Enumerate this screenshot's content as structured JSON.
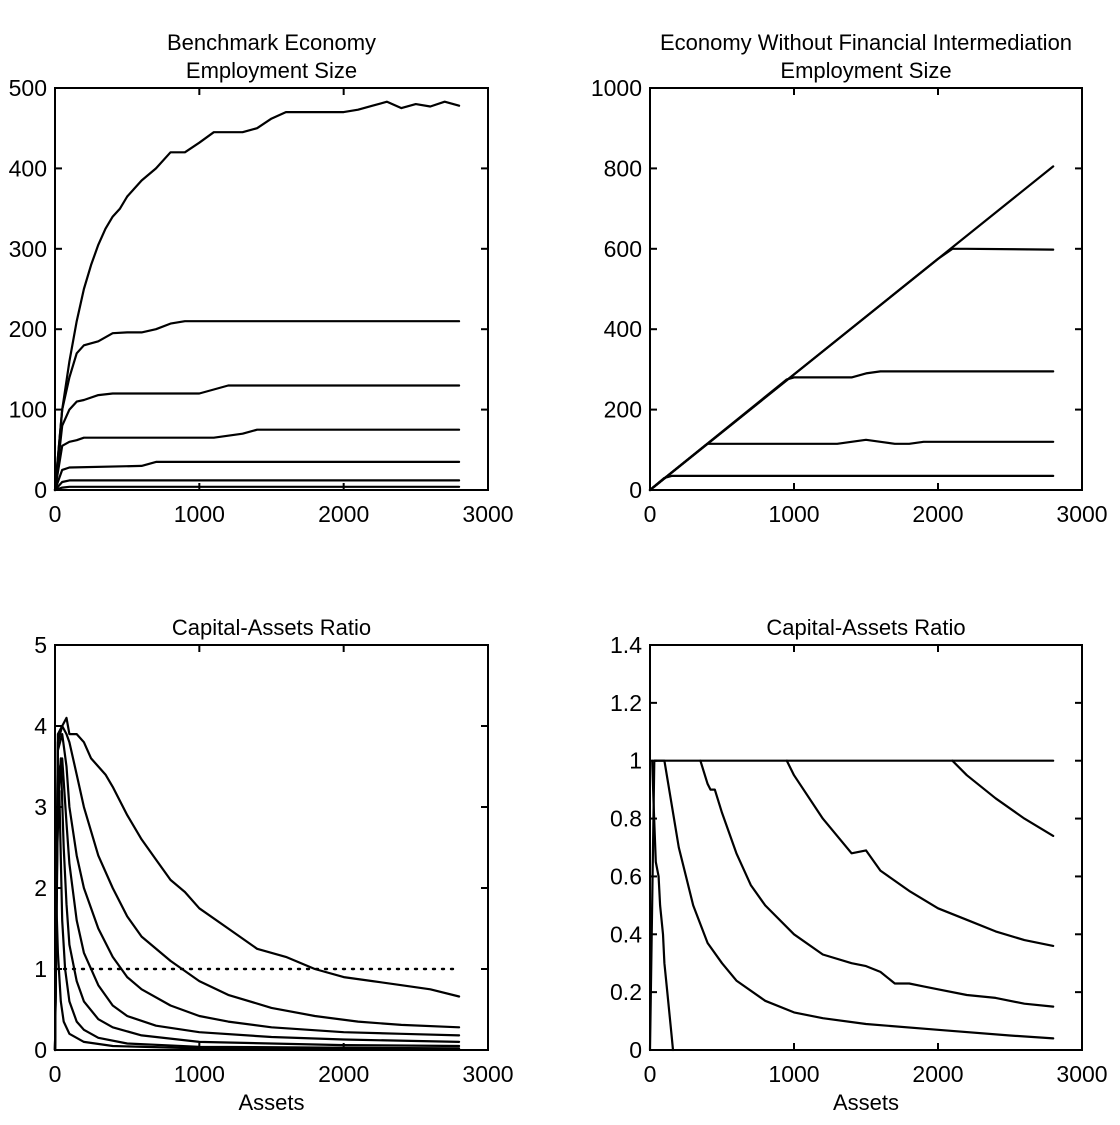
{
  "chart_data": [
    {
      "type": "line",
      "title": [
        "Benchmark Economy",
        "Employment Size"
      ],
      "xlabel": "",
      "xlim": [
        0,
        3000
      ],
      "ylim": [
        0,
        500
      ],
      "xticks": [
        0,
        1000,
        2000,
        3000
      ],
      "yticks": [
        0,
        100,
        200,
        300,
        400,
        500
      ],
      "grid": false,
      "series": [
        {
          "x": [
            0,
            50,
            100,
            150,
            200,
            250,
            300,
            350,
            400,
            450,
            500,
            550,
            600,
            700,
            800,
            900,
            1000,
            1100,
            1200,
            1300,
            1400,
            1500,
            1600,
            1800,
            2000,
            2100,
            2200,
            2300,
            2400,
            2500,
            2600,
            2700,
            2800
          ],
          "y": [
            0,
            100,
            160,
            210,
            250,
            280,
            305,
            325,
            340,
            350,
            365,
            375,
            385,
            400,
            420,
            420,
            432,
            445,
            445,
            445,
            450,
            462,
            470,
            470,
            470,
            473,
            478,
            483,
            475,
            480,
            477,
            483,
            478
          ]
        },
        {
          "x": [
            0,
            50,
            100,
            150,
            200,
            300,
            400,
            500,
            600,
            700,
            800,
            900,
            1000,
            2800
          ],
          "y": [
            0,
            100,
            140,
            170,
            180,
            185,
            195,
            196,
            196,
            200,
            207,
            210,
            210,
            210
          ]
        },
        {
          "x": [
            0,
            50,
            100,
            150,
            200,
            300,
            400,
            1000,
            1100,
            1200,
            2800
          ],
          "y": [
            0,
            80,
            100,
            110,
            112,
            118,
            120,
            120,
            125,
            130,
            130
          ]
        },
        {
          "x": [
            0,
            50,
            100,
            150,
            200,
            1100,
            1300,
            1400,
            2800
          ],
          "y": [
            0,
            55,
            60,
            62,
            65,
            65,
            70,
            75,
            75
          ]
        },
        {
          "x": [
            0,
            50,
            100,
            600,
            700,
            2800
          ],
          "y": [
            0,
            25,
            28,
            30,
            35,
            35
          ]
        },
        {
          "x": [
            0,
            50,
            100,
            2800
          ],
          "y": [
            0,
            10,
            12,
            12
          ]
        },
        {
          "x": [
            0,
            50,
            100,
            2800
          ],
          "y": [
            0,
            3,
            4,
            4
          ]
        }
      ]
    },
    {
      "type": "line",
      "title": [
        "Economy Without Financial Intermediation",
        "Employment Size"
      ],
      "xlabel": "",
      "xlim": [
        0,
        3000
      ],
      "ylim": [
        0,
        1000
      ],
      "xticks": [
        0,
        1000,
        2000,
        3000
      ],
      "yticks": [
        0,
        200,
        400,
        600,
        800,
        1000
      ],
      "grid": false,
      "series": [
        {
          "x": [
            0,
            2800
          ],
          "y": [
            0,
            805
          ]
        },
        {
          "x": [
            0,
            2000,
            2100,
            2200,
            2800
          ],
          "y": [
            0,
            575,
            600,
            600,
            598
          ]
        },
        {
          "x": [
            0,
            950,
            1000,
            1300,
            1400,
            1500,
            1600,
            2800
          ],
          "y": [
            0,
            275,
            280,
            280,
            280,
            290,
            295,
            295
          ]
        },
        {
          "x": [
            0,
            380,
            400,
            600,
            800,
            1000,
            1200,
            1300,
            1400,
            1500,
            1600,
            1700,
            1800,
            1900,
            2000,
            2800
          ],
          "y": [
            0,
            110,
            115,
            115,
            115,
            115,
            115,
            115,
            120,
            125,
            120,
            115,
            115,
            120,
            120,
            120
          ]
        },
        {
          "x": [
            0,
            100,
            150,
            2800
          ],
          "y": [
            0,
            30,
            35,
            35
          ]
        }
      ]
    },
    {
      "type": "line",
      "title": [
        "Capital-Assets Ratio"
      ],
      "xlabel": "Assets",
      "xlim": [
        0,
        3000
      ],
      "ylim": [
        0,
        5
      ],
      "xticks": [
        0,
        1000,
        2000,
        3000
      ],
      "yticks": [
        0,
        1,
        2,
        3,
        4,
        5
      ],
      "grid": false,
      "reference_line": {
        "y": 1,
        "x": [
          0,
          2800
        ],
        "style": "dotted"
      },
      "series": [
        {
          "x": [
            0,
            20,
            50,
            80,
            100,
            150,
            200,
            250,
            300,
            350,
            400,
            500,
            600,
            700,
            800,
            900,
            1000,
            1200,
            1400,
            1600,
            1800,
            2000,
            2200,
            2400,
            2600,
            2800
          ],
          "y": [
            0,
            3.9,
            4.0,
            4.1,
            3.9,
            3.9,
            3.8,
            3.6,
            3.5,
            3.4,
            3.25,
            2.9,
            2.6,
            2.35,
            2.1,
            1.95,
            1.75,
            1.5,
            1.25,
            1.15,
            1.0,
            0.9,
            0.85,
            0.8,
            0.75,
            0.66
          ]
        },
        {
          "x": [
            0,
            20,
            50,
            80,
            100,
            150,
            200,
            250,
            300,
            400,
            500,
            600,
            800,
            1000,
            1200,
            1500,
            1800,
            2100,
            2400,
            2800
          ],
          "y": [
            0,
            3.8,
            4.0,
            3.9,
            3.8,
            3.4,
            3.0,
            2.7,
            2.4,
            2.0,
            1.65,
            1.4,
            1.1,
            0.85,
            0.68,
            0.52,
            0.42,
            0.35,
            0.31,
            0.28
          ]
        },
        {
          "x": [
            0,
            20,
            50,
            80,
            100,
            150,
            200,
            300,
            400,
            500,
            600,
            800,
            1000,
            1200,
            1500,
            2000,
            2400,
            2800
          ],
          "y": [
            0,
            3.7,
            3.9,
            3.5,
            3.0,
            2.4,
            2.0,
            1.5,
            1.15,
            0.9,
            0.75,
            0.55,
            0.42,
            0.35,
            0.28,
            0.22,
            0.2,
            0.18
          ]
        },
        {
          "x": [
            0,
            20,
            50,
            80,
            100,
            150,
            200,
            300,
            400,
            500,
            700,
            1000,
            1500,
            2000,
            2800
          ],
          "y": [
            0,
            3.4,
            3.6,
            2.8,
            2.3,
            1.6,
            1.2,
            0.8,
            0.55,
            0.42,
            0.3,
            0.22,
            0.16,
            0.13,
            0.1
          ]
        },
        {
          "x": [
            0,
            20,
            40,
            60,
            80,
            100,
            150,
            200,
            300,
            400,
            600,
            1000,
            2000,
            2800
          ],
          "y": [
            0,
            3.0,
            3.6,
            2.5,
            1.8,
            1.3,
            0.85,
            0.6,
            0.38,
            0.28,
            0.18,
            0.1,
            0.06,
            0.05
          ]
        },
        {
          "x": [
            0,
            15,
            30,
            50,
            70,
            100,
            150,
            200,
            300,
            500,
            1000,
            2800
          ],
          "y": [
            0,
            2.5,
            3.2,
            1.6,
            1.0,
            0.6,
            0.35,
            0.25,
            0.15,
            0.08,
            0.04,
            0.02
          ]
        },
        {
          "x": [
            0,
            10,
            20,
            40,
            60,
            100,
            200,
            400,
            1000,
            2800
          ],
          "y": [
            0,
            1.8,
            1.2,
            0.6,
            0.35,
            0.2,
            0.1,
            0.05,
            0.02,
            0.01
          ]
        }
      ]
    },
    {
      "type": "line",
      "title": [
        "Capital-Assets Ratio"
      ],
      "xlabel": "Assets",
      "xlim": [
        0,
        3000
      ],
      "ylim": [
        0,
        1.4
      ],
      "xticks": [
        0,
        1000,
        2000,
        3000
      ],
      "yticks": [
        0,
        0.2,
        0.4,
        0.6,
        0.8,
        1,
        1.2,
        1.4
      ],
      "grid": false,
      "series": [
        {
          "x": [
            0,
            30,
            2800
          ],
          "y": [
            0,
            1.0,
            1.0
          ]
        },
        {
          "x": [
            2100,
            2200,
            2400,
            2600,
            2800
          ],
          "y": [
            1.0,
            0.95,
            0.87,
            0.8,
            0.74
          ]
        },
        {
          "x": [
            950,
            1000,
            1200,
            1400,
            1500,
            1600,
            1800,
            2000,
            2200,
            2400,
            2600,
            2800
          ],
          "y": [
            1.0,
            0.95,
            0.8,
            0.68,
            0.69,
            0.62,
            0.55,
            0.49,
            0.45,
            0.41,
            0.38,
            0.36
          ]
        },
        {
          "x": [
            350,
            400,
            420,
            450,
            500,
            600,
            700,
            800,
            1000,
            1200,
            1400,
            1500,
            1600,
            1700,
            1800,
            1900,
            2000,
            2200,
            2400,
            2600,
            2800
          ],
          "y": [
            1.0,
            0.92,
            0.9,
            0.9,
            0.82,
            0.68,
            0.57,
            0.5,
            0.4,
            0.33,
            0.3,
            0.29,
            0.27,
            0.23,
            0.23,
            0.22,
            0.21,
            0.19,
            0.18,
            0.16,
            0.15
          ]
        },
        {
          "x": [
            30,
            100,
            150,
            200,
            220,
            250,
            300,
            400,
            500,
            600,
            800,
            1000,
            1200,
            1500,
            2000,
            2500,
            2800
          ],
          "y": [
            1.0,
            1.0,
            0.85,
            0.7,
            0.66,
            0.6,
            0.5,
            0.37,
            0.3,
            0.24,
            0.17,
            0.13,
            0.11,
            0.09,
            0.07,
            0.05,
            0.04
          ]
        },
        {
          "x": [
            15,
            25,
            40,
            60,
            70,
            90,
            100,
            120,
            150,
            160
          ],
          "y": [
            1.0,
            0.85,
            0.65,
            0.6,
            0.5,
            0.4,
            0.3,
            0.2,
            0.05,
            0.0
          ]
        }
      ]
    }
  ]
}
